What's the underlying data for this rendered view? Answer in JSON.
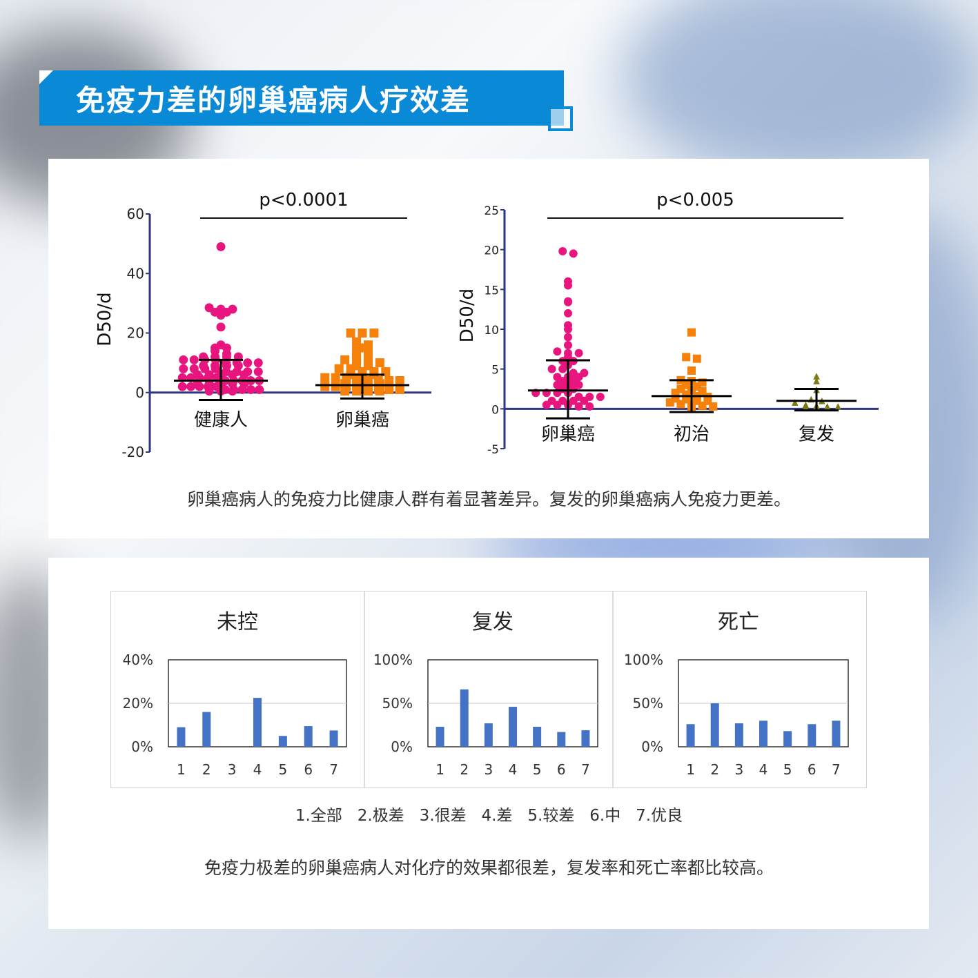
{
  "header": {
    "title": "免疫力差的卵巢癌病人疗效差"
  },
  "colors": {
    "accent": "#0a8ad6",
    "pink": "#e8157f",
    "orange": "#f5800a",
    "olive": "#7a7a10",
    "bar": "#4472c4",
    "axis": "#2e3580"
  },
  "chart_data": [
    {
      "type": "scatter",
      "ylabel": "D50/d",
      "ylim": [
        -20,
        60
      ],
      "yticks": [
        -20,
        0,
        20,
        40,
        60
      ],
      "categories": [
        "健康人",
        "卵巢癌"
      ],
      "significance": "p<0.0001",
      "series": [
        {
          "category": "健康人",
          "marker": "circle",
          "mean": 4,
          "sd_low": -2.5,
          "sd_high": 11,
          "values": [
            49,
            28.5,
            28,
            28,
            27,
            27,
            26,
            22,
            16,
            15,
            15,
            14,
            13,
            12,
            12,
            12,
            12,
            11,
            11,
            11,
            11,
            10,
            10,
            10,
            10,
            9,
            9,
            9,
            9,
            8,
            8,
            8,
            8,
            7,
            7,
            7,
            7,
            6,
            6,
            6,
            6,
            6,
            5,
            5,
            5,
            5,
            5,
            4,
            4,
            4,
            4,
            4,
            3,
            3,
            3,
            3,
            3,
            2,
            2,
            2,
            2,
            2,
            1,
            1,
            1,
            1,
            1,
            0.5,
            0.5,
            0.5
          ]
        },
        {
          "category": "卵巢癌",
          "marker": "square",
          "mean": 2.5,
          "sd_low": -2,
          "sd_high": 6,
          "values": [
            20,
            20,
            20,
            17,
            16,
            15,
            14,
            14,
            12,
            12,
            11,
            11,
            10,
            10,
            9,
            9,
            8,
            8,
            7,
            7,
            7,
            6,
            6,
            6,
            5,
            5,
            5,
            5,
            4,
            4,
            4,
            4,
            3,
            3,
            3,
            3,
            2,
            2,
            2,
            2,
            1,
            1,
            1,
            1,
            0.5,
            0.5,
            0.5,
            0.5
          ]
        }
      ]
    },
    {
      "type": "scatter",
      "ylabel": "D50/d",
      "ylim": [
        -5,
        25
      ],
      "yticks": [
        -5,
        0,
        5,
        10,
        15,
        20,
        25
      ],
      "categories": [
        "卵巢癌",
        "初治",
        "复发"
      ],
      "significance": "p<0.005",
      "series": [
        {
          "category": "卵巢癌",
          "marker": "circle",
          "mean": 2.3,
          "sd_low": -1.2,
          "sd_high": 6.1,
          "values": [
            19.8,
            19.5,
            16,
            15.5,
            13.5,
            13.4,
            12,
            10.5,
            10,
            9,
            8,
            7.2,
            7,
            7,
            6.5,
            6,
            6,
            5.5,
            5,
            5,
            4.5,
            4.5,
            4,
            4,
            4,
            3.5,
            3.5,
            3,
            3,
            3,
            2.5,
            2.5,
            2,
            2,
            2,
            2,
            1.5,
            1.5,
            1.5,
            1,
            1,
            1,
            1,
            0.5,
            0.5,
            0.5,
            0.3,
            0.3
          ]
        },
        {
          "category": "初治",
          "marker": "square",
          "mean": 1.6,
          "sd_low": -0.4,
          "sd_high": 3.6,
          "values": [
            9.6,
            6.5,
            6.3,
            4.8,
            3.6,
            3.5,
            3.3,
            3,
            2.8,
            2.5,
            2.4,
            2.2,
            2,
            1.8,
            1.6,
            1.5,
            1.3,
            1.2,
            1,
            1,
            0.8,
            0.6,
            0.5,
            0.4,
            0.3,
            0.2
          ]
        },
        {
          "category": "复发",
          "marker": "triangle",
          "mean": 1.0,
          "sd_low": -0.2,
          "sd_high": 2.5,
          "values": [
            4.1,
            3.5,
            2.4,
            1.2,
            1.0,
            0.8,
            0.5,
            0.4,
            0.3,
            0.3,
            0.2,
            0.2,
            0.2
          ]
        }
      ]
    },
    {
      "type": "bar",
      "title": "未控",
      "categories": [
        "1",
        "2",
        "3",
        "4",
        "5",
        "6",
        "7"
      ],
      "values": [
        9,
        16,
        0,
        22.5,
        5,
        9.5,
        7.5
      ],
      "ylim": [
        0,
        40
      ],
      "yticks": [
        "0%",
        "20%",
        "40%"
      ]
    },
    {
      "type": "bar",
      "title": "复发",
      "categories": [
        "1",
        "2",
        "3",
        "4",
        "5",
        "6",
        "7"
      ],
      "values": [
        23,
        66,
        27,
        46,
        23,
        17,
        19
      ],
      "ylim": [
        0,
        100
      ],
      "yticks": [
        "0%",
        "50%",
        "100%"
      ]
    },
    {
      "type": "bar",
      "title": "死亡",
      "categories": [
        "1",
        "2",
        "3",
        "4",
        "5",
        "6",
        "7"
      ],
      "values": [
        26,
        50,
        27,
        30,
        18,
        26,
        30
      ],
      "ylim": [
        0,
        100
      ],
      "yticks": [
        "0%",
        "50%",
        "100%"
      ]
    }
  ],
  "captions": {
    "top": "卵巢癌病人的免疫力比健康人群有着显著差异。复发的卵巢癌病人免疫力更差。",
    "legend": "1.全部   2.极差   3.很差   4.差   5.较差   6.中   7.优良",
    "bottom": "免疫力极差的卵巢癌病人对化疗的效果都很差，复发率和死亡率都比较高。"
  }
}
